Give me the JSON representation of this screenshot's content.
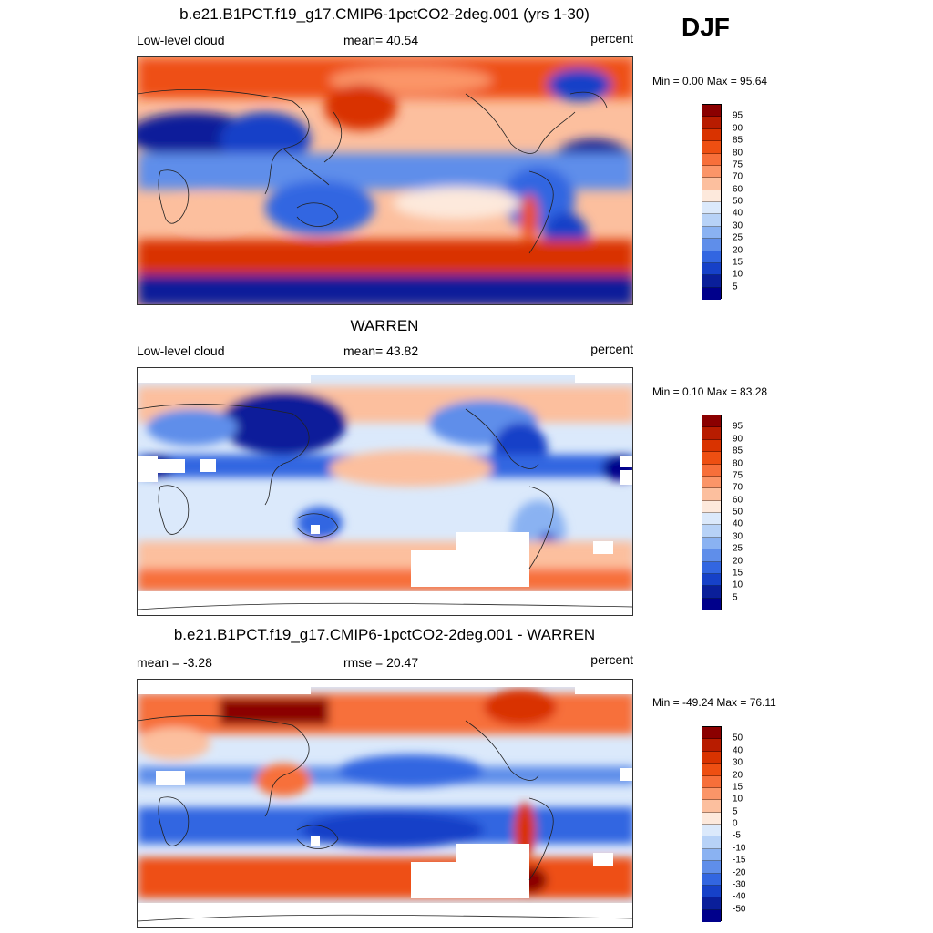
{
  "season": "DJF",
  "panels": [
    {
      "id": "model",
      "title": "b.e21.B1PCT.f19_g17.CMIP6-1pctCO2-2deg.001 (yrs 1-30)",
      "left": "Low-level cloud",
      "center": "mean=  40.54",
      "right": "percent",
      "minmax": "Min =   0.00 Max =  95.64",
      "levels": [
        "95",
        "90",
        "85",
        "80",
        "75",
        "70",
        "60",
        "50",
        "40",
        "30",
        "25",
        "20",
        "15",
        "10",
        "5"
      ],
      "colors": [
        "#8b0000",
        "#b81c00",
        "#d93300",
        "#ee4f12",
        "#f76f3a",
        "#fb9568",
        "#fcbf9e",
        "#fde9dc",
        "#dbe9fb",
        "#b7d2f7",
        "#8ab2f2",
        "#5f8eea",
        "#3266e1",
        "#1641c8",
        "#0a1f9a",
        "#00008b"
      ],
      "stats": {
        "mean": 40.54,
        "min": 0.0,
        "max": 95.64
      }
    },
    {
      "id": "obs",
      "title": "WARREN",
      "left": "Low-level cloud",
      "center": "mean=  43.82",
      "right": "percent",
      "minmax": "Min =   0.10 Max =  83.28",
      "levels": [
        "95",
        "90",
        "85",
        "80",
        "75",
        "70",
        "60",
        "50",
        "40",
        "30",
        "25",
        "20",
        "15",
        "10",
        "5"
      ],
      "colors": [
        "#8b0000",
        "#b81c00",
        "#d93300",
        "#ee4f12",
        "#f76f3a",
        "#fb9568",
        "#fcbf9e",
        "#fde9dc",
        "#dbe9fb",
        "#b7d2f7",
        "#8ab2f2",
        "#5f8eea",
        "#3266e1",
        "#1641c8",
        "#0a1f9a",
        "#00008b"
      ],
      "stats": {
        "mean": 43.82,
        "min": 0.1,
        "max": 83.28
      }
    },
    {
      "id": "diff",
      "title": "b.e21.B1PCT.f19_g17.CMIP6-1pctCO2-2deg.001 - WARREN",
      "left": "mean =  -3.28",
      "center": "rmse =  20.47",
      "right": "percent",
      "minmax": "Min = -49.24 Max =  76.11",
      "levels": [
        "50",
        "40",
        "30",
        "20",
        "15",
        "10",
        "5",
        "0",
        "-5",
        "-10",
        "-15",
        "-20",
        "-30",
        "-40",
        "-50"
      ],
      "colors": [
        "#8b0000",
        "#b81c00",
        "#d93300",
        "#ee4f12",
        "#f76f3a",
        "#fb9568",
        "#fcbf9e",
        "#fde9dc",
        "#dbe9fb",
        "#b7d2f7",
        "#8ab2f2",
        "#5f8eea",
        "#3266e1",
        "#1641c8",
        "#0a1f9a",
        "#00008b"
      ],
      "stats": {
        "mean": -3.28,
        "rmse": 20.47,
        "min": -49.24,
        "max": 76.11
      }
    }
  ]
}
